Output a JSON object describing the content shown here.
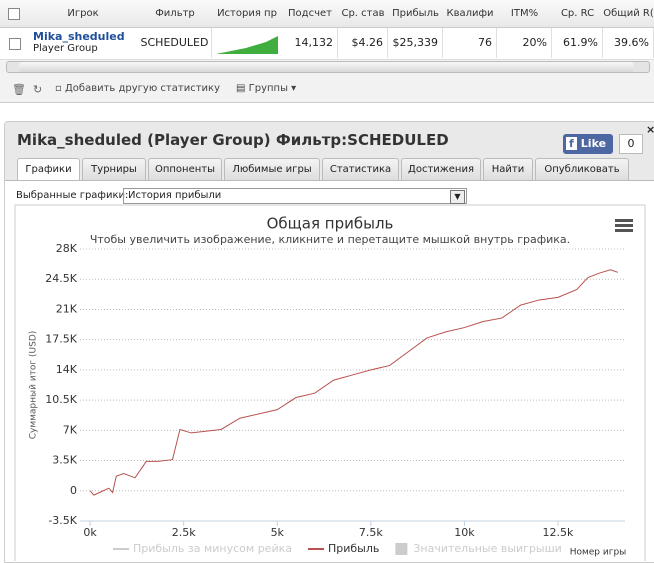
{
  "table": {
    "headers": [
      "Игрок",
      "Фильтр",
      "История пр",
      "Подсчет",
      "Ср. став",
      "Прибыль",
      "Квалифи",
      "ITM%",
      "Ср. RC",
      "Общий R("
    ],
    "row": {
      "player": "Mika_sheduled",
      "group": "Player Group",
      "filter": "SCHEDULED",
      "count": "14,132",
      "avg_stake": "$4.26",
      "profit": "$25,339",
      "qualified": "76",
      "itm": "20%",
      "avg_roi": "61.9%",
      "total_roi": "39.6%"
    }
  },
  "toolbar": {
    "add_stat": "Добавить другую статистику",
    "groups": "Группы"
  },
  "panel": {
    "title": "Mika_sheduled (Player Group) Фильтр:SCHEDULED",
    "like": "Like",
    "like_count": "0",
    "tabs": [
      "Графики",
      "Турниры",
      "Оппоненты",
      "Любимые игры",
      "Статистика",
      "Достижения",
      "Найти",
      "Опубликовать"
    ],
    "selected_label": "Выбранные графики:",
    "selected_value": "История прибыли"
  },
  "chart_data": {
    "type": "line",
    "title": "Общая прибыль",
    "subtitle": "Чтобы увеличить изображение, кликните и перетащите мышкой внутрь графика.",
    "y_label": "Суммарный итог (USD)",
    "x_label": "Номер игры",
    "xlim": [
      -270,
      14290
    ],
    "ylim": [
      -3500,
      28000
    ],
    "xticks": [
      {
        "value": 0,
        "label": "0k"
      },
      {
        "value": 2500,
        "label": "2.5k"
      },
      {
        "value": 5000,
        "label": "5k"
      },
      {
        "value": 7500,
        "label": "7.5k"
      },
      {
        "value": 10000,
        "label": "10k"
      },
      {
        "value": 12500,
        "label": "12.5k"
      }
    ],
    "yticks": [
      {
        "value": -3500,
        "label": "-3.5K"
      },
      0,
      {
        "value": 3500,
        "label": "3.5K"
      },
      {
        "value": 7000,
        "label": "7K"
      },
      {
        "value": 10500,
        "label": "10.5K"
      },
      {
        "value": 14000,
        "label": "14K"
      },
      {
        "value": 17500,
        "label": "17.5K"
      },
      {
        "value": 21000,
        "label": "21K"
      },
      {
        "value": 24500,
        "label": "24.5K"
      },
      {
        "value": 28000,
        "label": "28K"
      }
    ],
    "grid": true,
    "series": [
      {
        "name": "Прибыль за минусом рейка",
        "color": "#cccccc",
        "hidden": true
      },
      {
        "name": "Прибыль",
        "color": "#b8524e",
        "x": [
          0,
          100,
          300,
          500,
          600,
          700,
          900,
          1200,
          1500,
          1800,
          2200,
          2400,
          2700,
          3500,
          4000,
          5000,
          5500,
          6000,
          6500,
          7000,
          7500,
          8000,
          8500,
          9000,
          9500,
          10000,
          10500,
          11000,
          11500,
          12000,
          12500,
          13000,
          13300,
          13600,
          13900,
          14100
        ],
        "values": [
          0,
          -500,
          -100,
          300,
          -200,
          1700,
          2000,
          1500,
          3400,
          3400,
          3600,
          7100,
          6700,
          7100,
          8400,
          9400,
          10800,
          11300,
          12800,
          13400,
          14000,
          14500,
          16100,
          17700,
          18400,
          18900,
          19600,
          20000,
          21500,
          22100,
          22400,
          23300,
          24700,
          25200,
          25600,
          25300
        ]
      }
    ],
    "markers": {
      "name": "Значительные выигрыши",
      "color": "#cccccc"
    }
  }
}
